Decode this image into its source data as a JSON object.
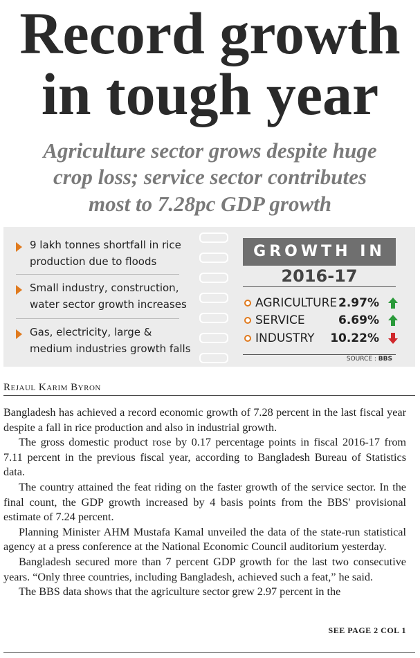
{
  "headline": [
    "Record growth",
    "in tough year"
  ],
  "subheadline": [
    "Agriculture sector grows despite huge",
    "crop loss; service sector contributes",
    "most to 7.28pc GDP growth"
  ],
  "highlights": [
    "9 lakh tonnes shortfall in rice production due to floods",
    "Small industry, construction, water sector growth increases",
    "Gas, electricity, large & medium industries growth falls"
  ],
  "growth_box": {
    "title": "GROWTH IN",
    "period": "2016-17",
    "rows": [
      {
        "sector": "AGRICULTURE",
        "value": "2.97%"
      },
      {
        "sector": "SERVICE",
        "value": "6.69%"
      },
      {
        "sector": "INDUSTRY",
        "value": "10.22%"
      }
    ],
    "source_label": "SOURCE :",
    "source": "BBS"
  },
  "byline": "Rejaul Karim Byron",
  "body": [
    "Bangladesh has achieved a record economic growth of 7.28 percent in the last fiscal year despite a fall in rice production and also in industrial growth.",
    "The gross domestic product rose by 0.17 percentage points in fiscal 2016-17 from 7.11 percent in the previous fiscal year, according to Bangladesh Bureau of Statistics data.",
    "The country attained the feat riding on the faster growth of the service sector. In the final count, the GDP growth increased by 4 basis points from the BBS' provisional estimate of 7.24 percent.",
    "Planning Minister AHM Mustafa Kamal unveiled the data of the state-run statistical agency at a press conference at the National Economic Council auditorium yesterday.",
    "Bangladesh secured more than 7 percent GDP growth for the last two consecutive years. “Only three countries, including Bangladesh, achieved such a feat,” he said.",
    "The BBS data shows that the agriculture sector grew 2.97 percent in the"
  ],
  "jump": "SEE PAGE 2 COL 1"
}
